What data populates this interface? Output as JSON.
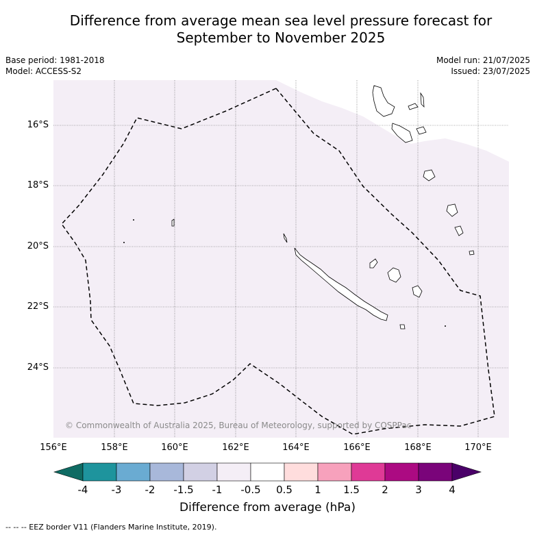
{
  "title_line1": "Difference from average mean sea level pressure forecast for",
  "title_line2": "September to November 2025",
  "base_period": "Base period: 1981-2018",
  "model": "Model: ACCESS-S2",
  "model_run": "Model run: 21/07/2025",
  "issued": "Issued: 23/07/2025",
  "lat_labels": [
    "16°S",
    "18°S",
    "20°S",
    "22°S",
    "24°S"
  ],
  "lon_labels": [
    "156°E",
    "158°E",
    "160°E",
    "162°E",
    "164°E",
    "166°E",
    "168°E",
    "170°E"
  ],
  "copyright": "© Commonwealth of Australia 2025, Bureau of Meteorology, supported by COSPPac",
  "colorbar": {
    "ticks": [
      "-4",
      "-3",
      "-2",
      "-1.5",
      "-1",
      "-0.5",
      "0.5",
      "1",
      "1.5",
      "2",
      "3",
      "4"
    ],
    "colors": [
      "#0f6b63",
      "#1e949d",
      "#6aabd2",
      "#a8b8da",
      "#d2d0e4",
      "#f4eef6",
      "#ffffff",
      "#ffdddd",
      "#f7a1bc",
      "#df3a96",
      "#ac0a82",
      "#7a047a",
      "#4a0068"
    ],
    "title": "Difference from average (hPa)"
  },
  "footer": "-- -- -- EEZ border V11 (Flanders Marine Institute, 2019).",
  "map": {
    "background_fill": "#f4eef6",
    "eez": "dashed border",
    "features": [
      "New Caledonia",
      "Loyalty Islands",
      "Vanuatu",
      "Chesterfield Islands"
    ]
  }
}
